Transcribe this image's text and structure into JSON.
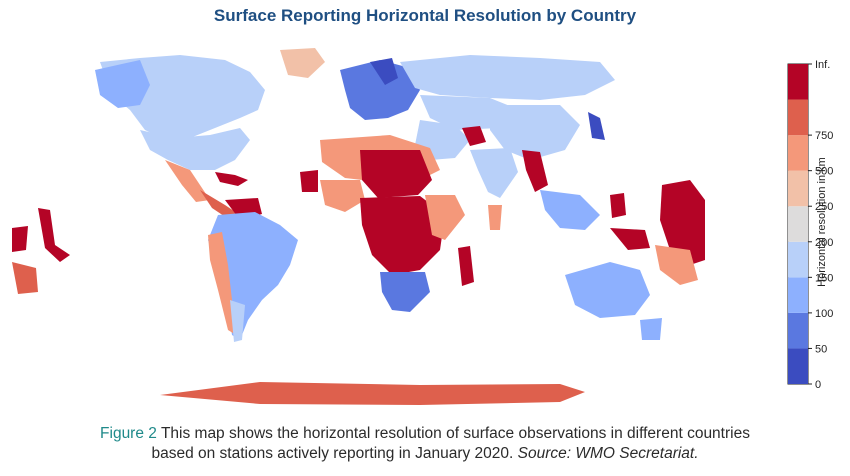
{
  "title": "Surface Reporting Horizontal Resolution by Country",
  "colorbar": {
    "label": "Horizontal resolution in km",
    "bins": [
      {
        "tick": "0",
        "color": "#3b4cc0"
      },
      {
        "tick": "50",
        "color": "#5a78e0"
      },
      {
        "tick": "100",
        "color": "#8db0fe"
      },
      {
        "tick": "150",
        "color": "#b8d0f9"
      },
      {
        "tick": "200",
        "color": "#dddcdc"
      },
      {
        "tick": "250",
        "color": "#f2c1a8"
      },
      {
        "tick": "500",
        "color": "#f4987a"
      },
      {
        "tick": "750",
        "color": "#de604d"
      },
      {
        "tick": "Inf.",
        "color": "#b40426"
      }
    ]
  },
  "caption": {
    "figure_label": "Figure 2",
    "line1": "This map shows the horizontal resolution of surface observations in different countries",
    "line2_main": "based on stations actively reporting in January 2020.",
    "line2_source": "Source: WMO Secretariat."
  }
}
